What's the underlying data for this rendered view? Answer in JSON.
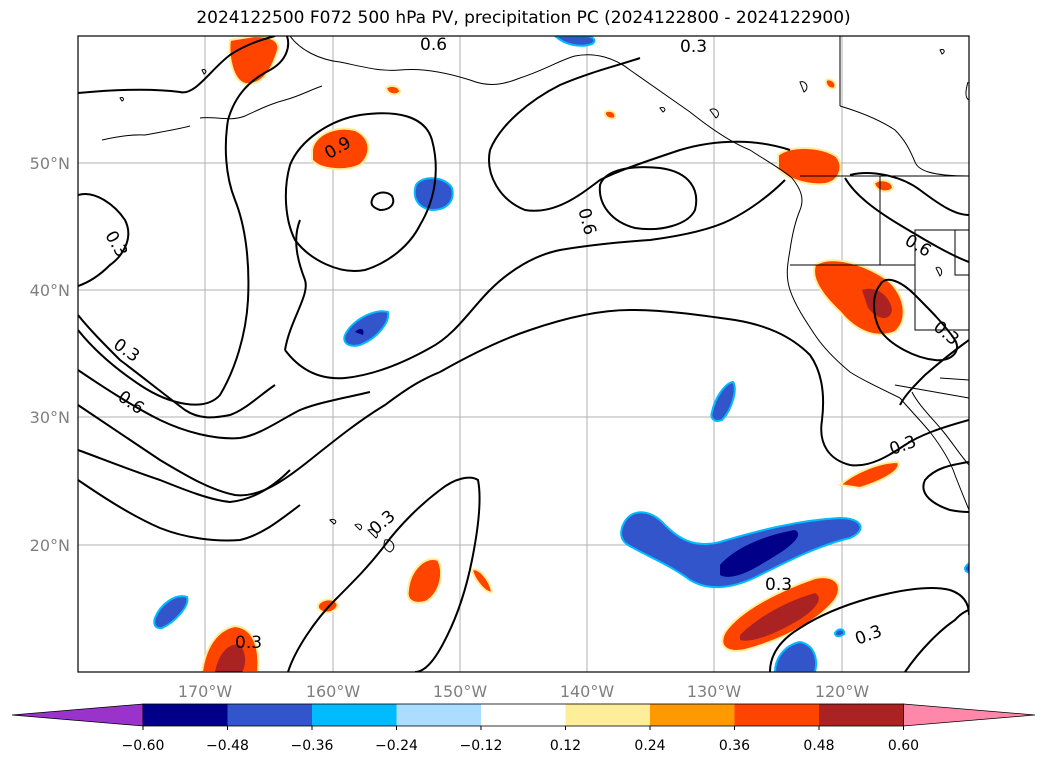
{
  "title": "2024122500 F072 500 hPa PV, precipitation PC (2024122800 - 2024122900)",
  "map": {
    "lat_ticks": [
      "50°N",
      "40°N",
      "30°N",
      "20°N"
    ],
    "lon_ticks": [
      "170°W",
      "160°W",
      "150°W",
      "140°W",
      "130°W",
      "120°W"
    ],
    "contour_labels": [
      "0.6",
      "0.3",
      "0.9",
      "0.6",
      "0.3",
      "0.6",
      "0.3",
      "0.3",
      "0.6",
      "0.3",
      "0.3",
      "0.3",
      "0.3",
      "0.3",
      "0.3"
    ],
    "gridlines": true
  },
  "colorbar": {
    "colors": [
      "#9933cc",
      "#000088",
      "#3355cc",
      "#00bbff",
      "#aaddff",
      "#ffffff",
      "#ffee99",
      "#ff9900",
      "#ff4400",
      "#aa2222",
      "#ff88aa"
    ],
    "tick_labels": [
      "−0.60",
      "−0.48",
      "−0.36",
      "−0.24",
      "−0.12",
      "0.12",
      "0.24",
      "0.36",
      "0.48",
      "0.60"
    ]
  }
}
